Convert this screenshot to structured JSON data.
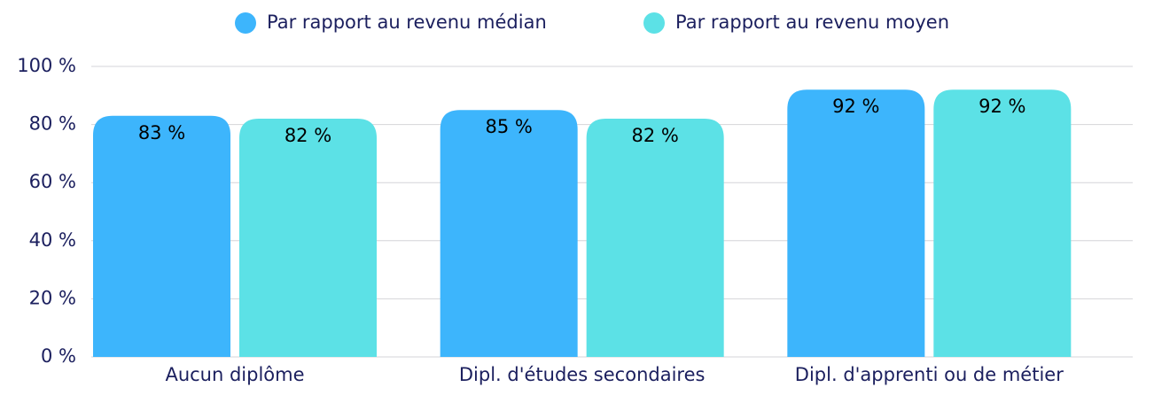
{
  "chart_data": {
    "type": "bar",
    "categories": [
      "Aucun diplôme",
      "Dipl. d'études secondaires",
      "Dipl. d'apprenti ou de métier"
    ],
    "series": [
      {
        "name": "Par rapport au revenu médian",
        "color": "#3db5fc",
        "values": [
          83,
          85,
          92
        ],
        "value_labels": [
          "83 %",
          "85 %",
          "92 %"
        ]
      },
      {
        "name": "Par rapport au revenu moyen",
        "color": "#5ce1e6",
        "values": [
          82,
          82,
          92
        ],
        "value_labels": [
          "82 %",
          "82 %",
          "92 %"
        ]
      }
    ],
    "ylim": [
      0,
      100
    ],
    "yticks": [
      {
        "value": 0,
        "label": "0 %"
      },
      {
        "value": 20,
        "label": "20 %"
      },
      {
        "value": 40,
        "label": "40 %"
      },
      {
        "value": 60,
        "label": "60 %"
      },
      {
        "value": 80,
        "label": "80 %"
      },
      {
        "value": 100,
        "label": "100 %"
      }
    ],
    "grid": true,
    "legend": "top"
  }
}
